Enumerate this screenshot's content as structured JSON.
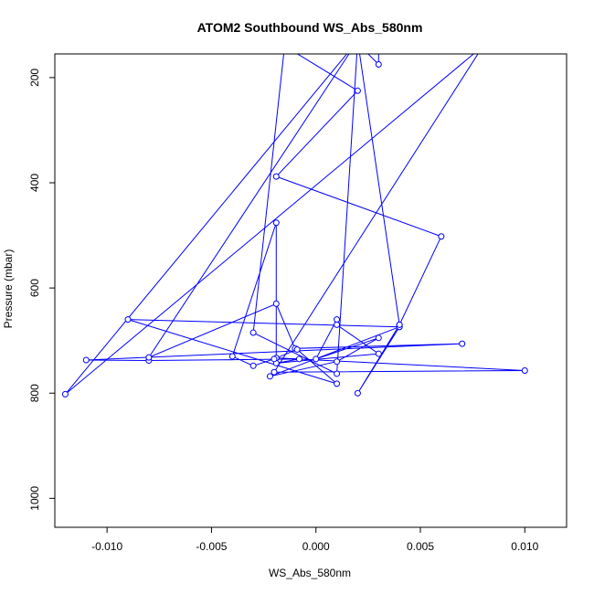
{
  "chart_data": {
    "type": "line",
    "title": "ATOM2 Southbound WS_Abs_580nm",
    "xlabel": "WS_Abs_580nm",
    "ylabel": "Pressure (mbar)",
    "xlim": [
      -0.0125,
      0.012
    ],
    "ylim": [
      1055,
      155
    ],
    "y_reversed": true,
    "grid": false,
    "x_ticks": [
      -0.01,
      -0.005,
      0.0,
      0.005,
      0.01
    ],
    "x_tick_labels": [
      "-0.010",
      "-0.005",
      "0.000",
      "0.005",
      "0.010"
    ],
    "y_ticks": [
      200,
      400,
      600,
      800,
      1000
    ],
    "y_tick_labels": [
      "200",
      "400",
      "600",
      "800",
      "1000"
    ],
    "colors": {
      "series": "#0000ff",
      "axis": "#000000"
    },
    "series": [
      {
        "marker": "open-circle",
        "points": [
          [
            0.003,
            140
          ],
          [
            0.003,
            175
          ],
          [
            0.002,
            135
          ],
          [
            -0.0015,
            140
          ],
          [
            0.002,
            225
          ],
          [
            -0.0019,
            388
          ],
          [
            0.006,
            502
          ],
          [
            0.004,
            670
          ],
          [
            0.004,
            674
          ],
          [
            -0.0022,
            768
          ],
          [
            0.001,
            740
          ],
          [
            0.003,
            695
          ],
          [
            0.0,
            735
          ],
          [
            0.001,
            660
          ],
          [
            0.001,
            670
          ],
          [
            0.003,
            725
          ],
          [
            -0.0019,
            743
          ],
          [
            -0.0008,
            735
          ],
          [
            -0.008,
            738
          ],
          [
            -0.011,
            737
          ],
          [
            0.007,
            706
          ],
          [
            -0.001,
            715
          ],
          [
            -0.0019,
            630
          ],
          [
            -0.008,
            732
          ],
          [
            0.002,
            130
          ],
          [
            -0.012,
            802
          ],
          [
            0.008,
            140
          ],
          [
            -0.002,
            760
          ],
          [
            0.01,
            757
          ],
          [
            -0.0019,
            733
          ],
          [
            -0.0019,
            476
          ],
          [
            -0.004,
            730
          ],
          [
            -0.003,
            748
          ],
          [
            -0.002,
            735
          ],
          [
            -0.0009,
            717
          ],
          [
            0.001,
            782
          ],
          [
            -0.009,
            660
          ],
          [
            0.004,
            674
          ],
          [
            0.002,
            800
          ],
          [
            0.004,
            670
          ],
          [
            0.002,
            130
          ],
          [
            0.001,
            763
          ],
          [
            -0.003,
            685
          ],
          [
            -0.0015,
            140
          ]
        ]
      }
    ]
  }
}
